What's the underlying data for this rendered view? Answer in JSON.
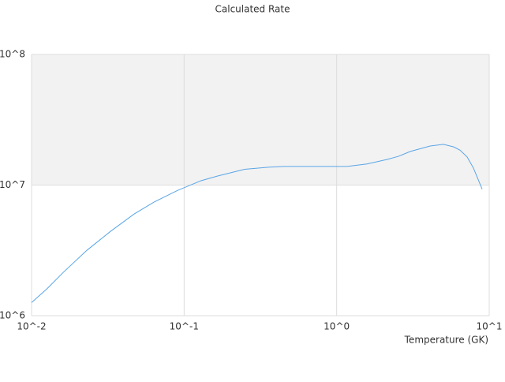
{
  "chart_data": {
    "type": "line",
    "title": "Calculated Rate",
    "x_label": "Temperature (GK)",
    "x": [
      0.01,
      0.0127,
      0.0161,
      0.023,
      0.0329,
      0.047,
      0.0633,
      0.0905,
      0.129,
      0.164,
      0.249,
      0.356,
      0.452,
      1.17,
      1.58,
      2.13,
      2.54,
      3.04,
      4.1,
      5.01,
      5.85,
      6.44,
      7.17,
      7.88,
      8.99
    ],
    "series": [
      {
        "color": "#5aa5e6",
        "values": [
          1260000,
          1620000,
          2140000,
          3160000,
          4420000,
          6000000,
          7400000,
          9100000,
          10800000,
          11700000,
          13200000,
          13700000,
          13900000,
          13900000,
          14500000,
          15700000,
          16600000,
          18100000,
          19900000,
          20500000,
          19600000,
          18500000,
          16400000,
          13500000,
          9300000
        ]
      }
    ],
    "xlim": [
      0.01,
      10
    ],
    "ylim": [
      1000000,
      100000000
    ],
    "log_x": true,
    "log_y": true,
    "grid": true,
    "xticks": [
      {
        "value": 0.01,
        "label": "10^-2"
      },
      {
        "value": 0.1,
        "label": "10^-1"
      },
      {
        "value": 1,
        "label": "10^0"
      },
      {
        "value": 10,
        "label": "10^1"
      }
    ],
    "yticks": [
      {
        "value": 1000000,
        "label": "10^6"
      },
      {
        "value": 10000000,
        "label": "10^7"
      },
      {
        "value": 100000000,
        "label": "10^8"
      }
    ]
  }
}
